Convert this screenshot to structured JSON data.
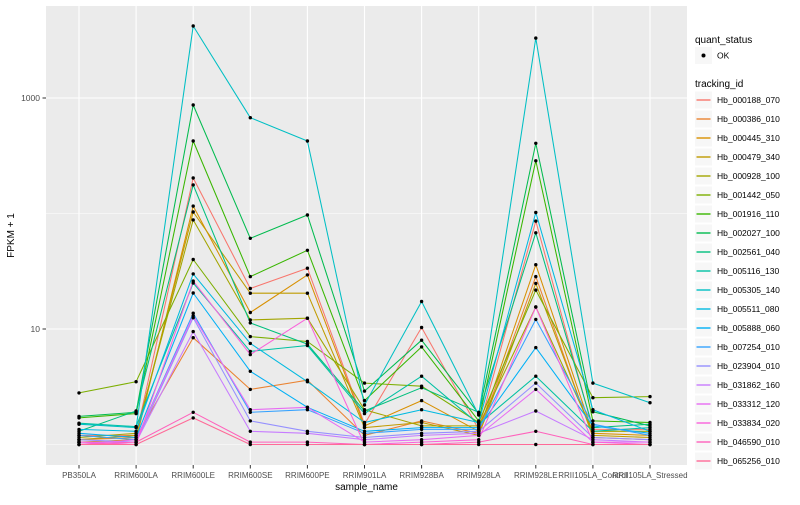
{
  "figure": {
    "background": "#ffffff",
    "panel_background": "#EBEBEB",
    "grid_color": "#FFFFFF",
    "axis_text_color": "#4D4D4D",
    "axis_title_color": "#000000",
    "point_color": "#000000"
  },
  "legend": {
    "quant_status": {
      "title": "quant_status",
      "items": [
        {
          "label": "OK",
          "marker": "point-icon",
          "color": "#000000"
        }
      ]
    },
    "tracking_id_title": "tracking_id",
    "key_fill": "#F2F2F2"
  },
  "chart_data": {
    "type": "line",
    "title": "",
    "xlabel": "sample_name",
    "ylabel": "FPKM + 1",
    "y_scale": "log10",
    "ylim": [
      0.66,
      6000
    ],
    "y_major_breaks": [
      10,
      1000
    ],
    "y_major_tick_labels": [
      "10",
      "1000"
    ],
    "y_minor_breaks": [
      1,
      100
    ],
    "grid": true,
    "legend_position": "right",
    "points": "black dot at every observation (quant_status = OK)",
    "categories": [
      "PB350LA",
      "RRIM600LA",
      "RRIM600LE",
      "RRIM600SE",
      "RRIM600PE",
      "RRIM901LA",
      "RRIM928BA",
      "RRIM928LA",
      "RRIM928LE",
      "RRII105LA_Control",
      "RRII105LA_Stressed"
    ],
    "series": [
      {
        "name": "Hb_000188_070",
        "color": "#F8766D",
        "values": [
          1.2,
          1.2,
          203,
          22.4,
          33.6,
          1.5,
          10.3,
          1.35,
          86,
          1.35,
          1.35
        ]
      },
      {
        "name": "Hb_000386_010",
        "color": "#EA8331",
        "values": [
          1.1,
          1.15,
          8.4,
          3.0,
          3.6,
          1.2,
          1.6,
          1.25,
          28.4,
          1.15,
          1.1
        ]
      },
      {
        "name": "Hb_000445_310",
        "color": "#D89000",
        "values": [
          1.05,
          1.1,
          116,
          13.9,
          29.4,
          1.45,
          2.4,
          1.3,
          36,
          1.25,
          1.2
        ]
      },
      {
        "name": "Hb_000479_340",
        "color": "#C09B00",
        "values": [
          1.1,
          1.2,
          103,
          20.4,
          20.4,
          1.4,
          1.55,
          1.2,
          24.8,
          1.2,
          1.15
        ]
      },
      {
        "name": "Hb_000928_100",
        "color": "#A3A500",
        "values": [
          1.15,
          1.25,
          88,
          12.0,
          12.4,
          2.0,
          1.45,
          1.45,
          15.5,
          1.3,
          1.3
        ]
      },
      {
        "name": "Hb_001442_050",
        "color": "#7CAE00",
        "values": [
          2.8,
          3.5,
          40,
          8.6,
          7.8,
          3.4,
          3.2,
          1.55,
          21.7,
          2.54,
          2.6
        ]
      },
      {
        "name": "Hb_001916_110",
        "color": "#39B600",
        "values": [
          1.7,
          1.85,
          424,
          28.4,
          48,
          2.4,
          7.0,
          1.6,
          286,
          1.6,
          1.55
        ]
      },
      {
        "name": "Hb_002027_100",
        "color": "#00BB4E",
        "values": [
          1.75,
          1.9,
          870,
          61,
          97,
          2.9,
          8.0,
          1.85,
          405,
          1.92,
          1.45
        ]
      },
      {
        "name": "Hb_002561_040",
        "color": "#00BF7D",
        "values": [
          1.3,
          1.95,
          177,
          11.3,
          7.4,
          1.95,
          3.1,
          1.9,
          68,
          1.4,
          1.5
        ]
      },
      {
        "name": "Hb_005116_130",
        "color": "#00C1A3",
        "values": [
          1.53,
          1.43,
          25,
          6.4,
          7.2,
          1.85,
          3.9,
          1.5,
          3.9,
          1.3,
          1.4
        ]
      },
      {
        "name": "Hb_005305_140",
        "color": "#00BFC4",
        "values": [
          1.5,
          1.4,
          4200,
          675,
          424,
          2.2,
          17.3,
          1.8,
          3300,
          3.4,
          2.3
        ]
      },
      {
        "name": "Hb_005511_080",
        "color": "#00BAE0",
        "values": [
          1.35,
          1.3,
          30,
          7.5,
          3.5,
          1.55,
          2.0,
          1.55,
          102,
          2.0,
          1.3
        ]
      },
      {
        "name": "Hb_005888_060",
        "color": "#00B0F6",
        "values": [
          1.25,
          1.15,
          20.5,
          4.3,
          2.1,
          1.3,
          1.4,
          1.4,
          6.9,
          1.45,
          1.25
        ]
      },
      {
        "name": "Hb_007254_010",
        "color": "#35A2FF",
        "values": [
          1.2,
          1.1,
          13.7,
          1.9,
          2.0,
          1.25,
          1.35,
          1.35,
          12.1,
          1.5,
          1.2
        ]
      },
      {
        "name": "Hb_023904_010",
        "color": "#9590FF",
        "values": [
          1.1,
          1.05,
          12.5,
          1.6,
          1.3,
          1.15,
          1.25,
          1.3,
          3.4,
          1.15,
          1.1
        ]
      },
      {
        "name": "Hb_031862_160",
        "color": "#C77CFF",
        "values": [
          1.05,
          1.05,
          9.5,
          1.3,
          1.25,
          1.1,
          1.2,
          1.25,
          1.95,
          1.1,
          1.05
        ]
      },
      {
        "name": "Hb_033312_120",
        "color": "#E76BF3",
        "values": [
          1.0,
          1.1,
          13,
          2.0,
          2.1,
          1.05,
          1.1,
          1.2,
          3.0,
          1.05,
          1.05
        ]
      },
      {
        "name": "Hb_033834_020",
        "color": "#FA62DB",
        "values": [
          1.05,
          1.0,
          26,
          6.0,
          12.4,
          1.0,
          1.05,
          1.1,
          15.5,
          1.05,
          1.0
        ]
      },
      {
        "name": "Hb_046590_010",
        "color": "#FF62BC",
        "values": [
          1.0,
          1.05,
          1.9,
          1.05,
          1.05,
          1.0,
          1.0,
          1.05,
          1.3,
          1.0,
          1.0
        ]
      },
      {
        "name": "Hb_065256_010",
        "color": "#FF6A98",
        "values": [
          1.0,
          1.0,
          1.7,
          1.0,
          1.0,
          1.0,
          1.0,
          1.0,
          1.0,
          1.0,
          1.0
        ]
      }
    ]
  }
}
